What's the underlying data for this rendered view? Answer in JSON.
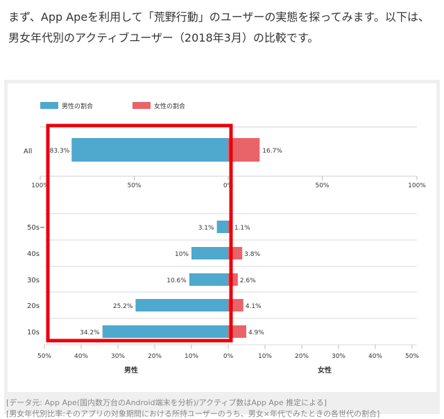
{
  "intro_text": "まず、App Apeを利用して「荒野行動」のユーザーの実態を探ってみます。以下は、男女年代別のアクティブユーザー（2018年3月）の比較です。",
  "colors": {
    "male": "#4fa8cd",
    "female": "#e96468",
    "highlight": "#e8000b"
  },
  "chart_data": [
    {
      "type": "bar",
      "orientation": "horizontal-butterfly",
      "categories": [
        "All"
      ],
      "legend": [
        "男性の割合",
        "女性の割合"
      ],
      "legend_placement": "top-left",
      "series": [
        {
          "name": "男性の割合",
          "values": [
            83.3
          ],
          "labels": [
            "83.3%"
          ]
        },
        {
          "name": "女性の割合",
          "values": [
            16.7
          ],
          "labels": [
            "16.7%"
          ]
        }
      ],
      "xlim": [
        -100,
        100
      ],
      "ticks": [
        "100%",
        "50%",
        "0%",
        "50%",
        "100%"
      ],
      "grid": true
    },
    {
      "type": "bar",
      "orientation": "horizontal-butterfly",
      "categories": [
        "50s~",
        "40s",
        "30s",
        "20s",
        "10s"
      ],
      "series": [
        {
          "name": "男性",
          "values": [
            3.1,
            10,
            10.6,
            25.2,
            34.2
          ],
          "labels": [
            "3.1%",
            "10%",
            "10.6%",
            "25.2%",
            "34.2%"
          ]
        },
        {
          "name": "女性",
          "values": [
            1.1,
            3.8,
            2.6,
            4.1,
            4.9
          ],
          "labels": [
            "1.1%",
            "3.8%",
            "2.6%",
            "4.1%",
            "4.9%"
          ]
        }
      ],
      "xlim": [
        -50,
        50
      ],
      "ticks": [
        "50%",
        "40%",
        "30%",
        "20%",
        "10%",
        "0%",
        "10%",
        "20%",
        "30%",
        "40%",
        "50%"
      ],
      "xlabel_left": "男性",
      "xlabel_right": "女性",
      "grid": true
    }
  ],
  "captions": [
    "[データ元: App Ape(国内数万台のAndroid端末を分析)/アクティブ数はApp Ape 推定による]",
    "[男女年代別比率:そのアプリの対象期間における所持ユーザーのうち、男女×年代でみたときの各世代の割合]"
  ]
}
